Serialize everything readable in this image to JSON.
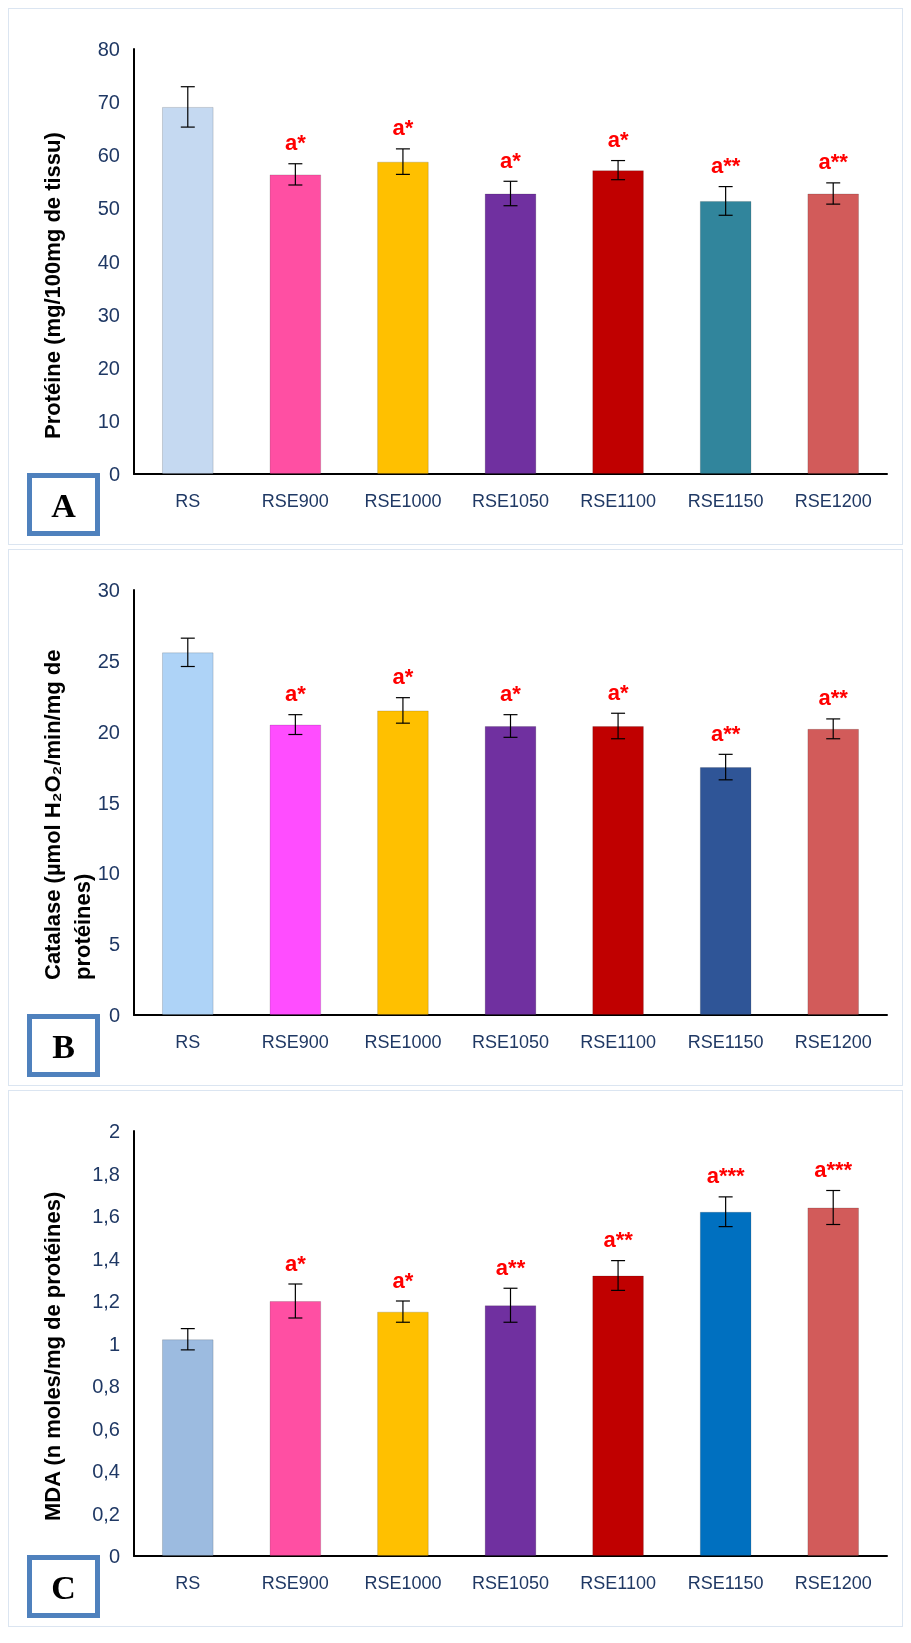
{
  "chart_data": [
    {
      "type": "bar",
      "ylabel": "Protéine (mg/100mg de tissu)",
      "categories": [
        "RS",
        "RSE900",
        "RSE1000",
        "RSE1050",
        "RSE1100",
        "RSE1150",
        "RSE1200"
      ],
      "values": [
        69.1,
        56.4,
        58.8,
        52.8,
        57.2,
        51.4,
        52.8
      ],
      "errors": [
        3.8,
        2,
        2.4,
        2.3,
        1.8,
        2.7,
        2
      ],
      "colors": [
        "#c5d9f1",
        "#ff4fa3",
        "#ffc000",
        "#7030a0",
        "#c00000",
        "#31859c",
        "#d25b5a"
      ],
      "ylim": [
        0,
        80
      ],
      "yticks": [
        0,
        10,
        20,
        30,
        40,
        50,
        60,
        70,
        80
      ],
      "value_labels": [
        null,
        "a*",
        "a*",
        "a*",
        "a*",
        "a**",
        "a**"
      ],
      "annotations": [
        "A"
      ]
    },
    {
      "type": "bar",
      "ylabel": "Catalase (µmol H₂O₂/min/mg de protéines)",
      "categories": [
        "RS",
        "RSE900",
        "RSE1000",
        "RSE1050",
        "RSE1100",
        "RSE1150",
        "RSE1200"
      ],
      "values": [
        25.6,
        20.5,
        21.5,
        20.4,
        20.4,
        17.5,
        20.2
      ],
      "errors": [
        1,
        0.7,
        0.9,
        0.8,
        0.9,
        0.9,
        0.7
      ],
      "colors": [
        "#aed3f7",
        "#ff4dff",
        "#ffc000",
        "#7030a0",
        "#c00000",
        "#2f5597",
        "#d25b5a"
      ],
      "ylim": [
        0,
        30
      ],
      "yticks": [
        0,
        5,
        10,
        15,
        20,
        25,
        30
      ],
      "value_labels": [
        null,
        "a*",
        "a*",
        "a*",
        "a*",
        "a**",
        "a**"
      ],
      "annotations": [
        "B"
      ]
    },
    {
      "type": "bar",
      "ylabel": "MDA (n moles/mg de protéines)",
      "categories": [
        "RS",
        "RSE900",
        "RSE1000",
        "RSE1050",
        "RSE1100",
        "RSE1150",
        "RSE1200"
      ],
      "values": [
        1.02,
        1.2,
        1.15,
        1.18,
        1.32,
        1.62,
        1.64
      ],
      "errors": [
        0.05,
        0.08,
        0.05,
        0.08,
        0.07,
        0.07,
        0.08
      ],
      "colors": [
        "#9cbbe0",
        "#ff4fa3",
        "#ffc000",
        "#7030a0",
        "#c00000",
        "#0070c0",
        "#d25b5a"
      ],
      "ylim": [
        0,
        2
      ],
      "yticks": [
        0,
        {
          "value": 0.2,
          "label": "0,2"
        },
        {
          "value": 0.4,
          "label": "0,4"
        },
        {
          "value": 0.6,
          "label": "0,6"
        },
        {
          "value": 0.8,
          "label": "0,8"
        },
        1,
        {
          "value": 1.2,
          "label": "1,2"
        },
        {
          "value": 1.4,
          "label": "1,4"
        },
        {
          "value": 1.6,
          "label": "1,6"
        },
        {
          "value": 1.8,
          "label": "1,8"
        },
        2
      ],
      "value_labels": [
        null,
        "a*",
        "a*",
        "a**",
        "a**",
        "a***",
        "a***"
      ],
      "annotations": [
        "C"
      ]
    }
  ]
}
